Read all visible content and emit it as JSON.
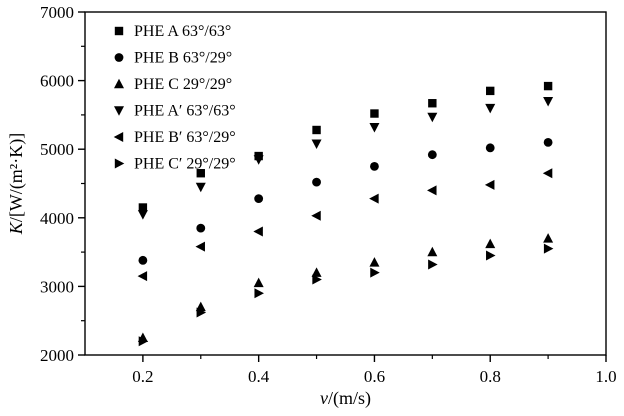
{
  "chart_data": {
    "type": "scatter",
    "title": "",
    "xlabel": "v/(m/s)",
    "ylabel": "K/[W/(m²·K)]",
    "xlim": [
      0.1,
      1.0
    ],
    "ylim": [
      2000,
      7000
    ],
    "x_ticks": [
      0.2,
      0.4,
      0.6,
      0.8,
      1.0
    ],
    "x_minor_ticks": [
      0.3,
      0.5,
      0.7,
      0.9
    ],
    "y_ticks": [
      2000,
      3000,
      4000,
      5000,
      6000,
      7000
    ],
    "y_minor_ticks": [
      2500,
      3500,
      4500,
      5500,
      6500
    ],
    "grid": false,
    "legend_position": "top-left",
    "marker_color": "#000000",
    "x": [
      0.2,
      0.3,
      0.4,
      0.5,
      0.6,
      0.7,
      0.8,
      0.9
    ],
    "series": [
      {
        "name": "PHE A 63°/63°",
        "marker": "square",
        "values": [
          4150,
          4650,
          4900,
          5280,
          5520,
          5670,
          5850,
          5920
        ]
      },
      {
        "name": "PHE B 63°/29°",
        "marker": "circle",
        "values": [
          3380,
          3850,
          4280,
          4520,
          4750,
          4920,
          5020,
          5100
        ]
      },
      {
        "name": "PHE C 29°/29°",
        "marker": "triangle-up",
        "values": [
          2250,
          2700,
          3050,
          3200,
          3350,
          3500,
          3620,
          3700
        ]
      },
      {
        "name": "PHE A′ 63°/63°",
        "marker": "triangle-down",
        "values": [
          4050,
          4450,
          4850,
          5080,
          5320,
          5470,
          5600,
          5700
        ]
      },
      {
        "name": "PHE B′ 63°/29°",
        "marker": "triangle-left",
        "values": [
          3150,
          3580,
          3800,
          4030,
          4280,
          4400,
          4480,
          4650
        ]
      },
      {
        "name": "PHE C′ 29°/29°",
        "marker": "triangle-right",
        "values": [
          2200,
          2620,
          2900,
          3100,
          3200,
          3320,
          3450,
          3550
        ]
      }
    ]
  }
}
